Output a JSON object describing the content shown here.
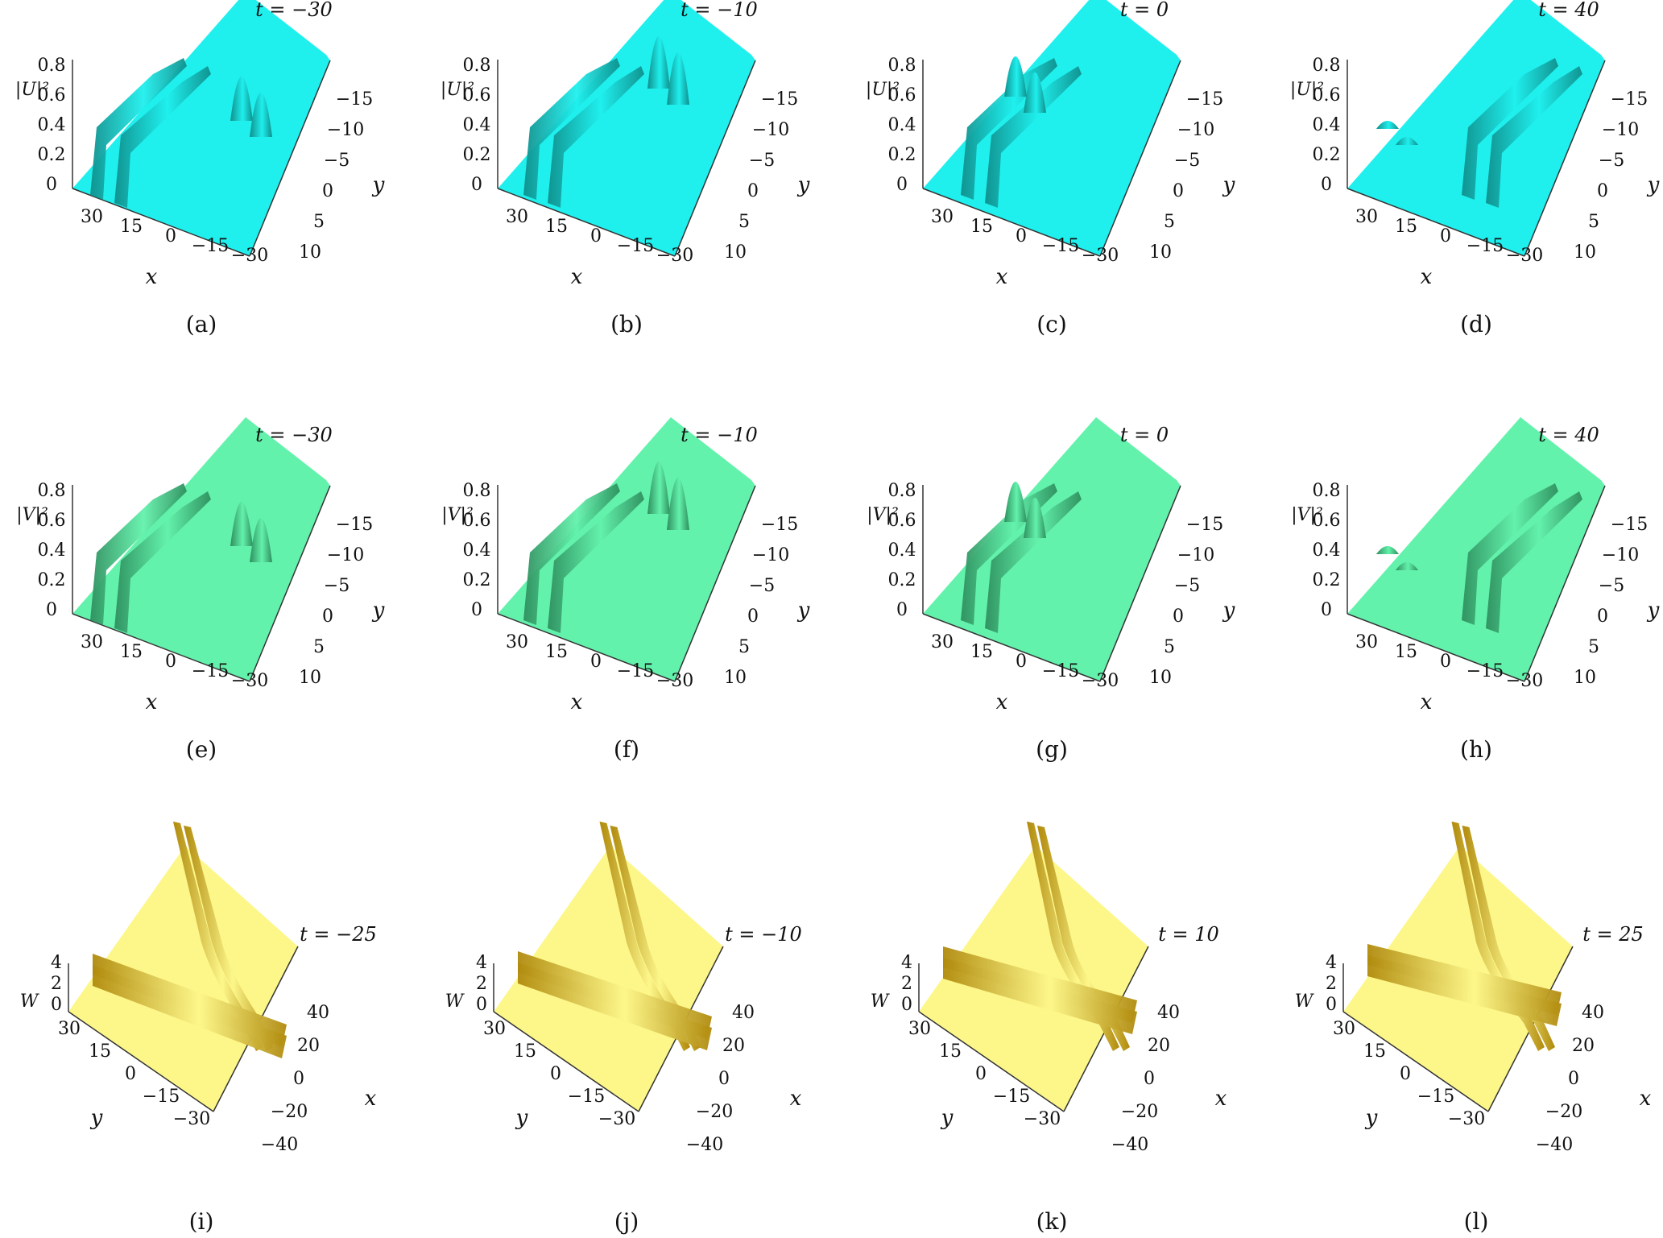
{
  "panels": [
    {
      "id": "a",
      "caption": "(a)",
      "t_label": "t = −30",
      "z_label": "|U|²",
      "field": "U",
      "row": 0,
      "col": 0,
      "color": "#1ff0ee",
      "dark": "#0f8f8c",
      "features": "two line solitons at left, two lumps at right"
    },
    {
      "id": "b",
      "caption": "(b)",
      "t_label": "t = −10",
      "z_label": "|U|²",
      "field": "U",
      "row": 0,
      "col": 1,
      "color": "#1ff0ee",
      "dark": "#0f8f8c",
      "features": "lumps approaching line solitons"
    },
    {
      "id": "c",
      "caption": "(c)",
      "t_label": "t = 0",
      "z_label": "|U|²",
      "field": "U",
      "row": 0,
      "col": 2,
      "color": "#1ff0ee",
      "dark": "#0f8f8c",
      "features": "lumps merged into line solitons"
    },
    {
      "id": "d",
      "caption": "(d)",
      "t_label": "t = 40",
      "z_label": "|U|²",
      "field": "U",
      "row": 0,
      "col": 3,
      "color": "#1ff0ee",
      "dark": "#0f8f8c",
      "features": "lumps separated again on left"
    },
    {
      "id": "e",
      "caption": "(e)",
      "t_label": "t = −30",
      "z_label": "|V|²",
      "field": "V",
      "row": 1,
      "col": 0,
      "color": "#63f2ac",
      "dark": "#2e8f5e",
      "features": "two line solitons at left, two lumps at right"
    },
    {
      "id": "f",
      "caption": "(f)",
      "t_label": "t = −10",
      "z_label": "|V|²",
      "field": "V",
      "row": 1,
      "col": 1,
      "color": "#63f2ac",
      "dark": "#2e8f5e",
      "features": "lumps approaching line solitons"
    },
    {
      "id": "g",
      "caption": "(g)",
      "t_label": "t = 0",
      "z_label": "|V|²",
      "field": "V",
      "row": 1,
      "col": 2,
      "color": "#63f2ac",
      "dark": "#2e8f5e",
      "features": "lumps merged into line solitons"
    },
    {
      "id": "h",
      "caption": "(h)",
      "t_label": "t = 40",
      "z_label": "|V|²",
      "field": "V",
      "row": 1,
      "col": 3,
      "color": "#63f2ac",
      "dark": "#2e8f5e",
      "features": "lumps separated again on left"
    },
    {
      "id": "i",
      "caption": "(i)",
      "t_label": "t = −25",
      "z_label": "W",
      "field": "W",
      "row": 2,
      "col": 0,
      "color": "#fdf78a",
      "dark": "#b08a0c",
      "features": "crossing pairs of line solitons"
    },
    {
      "id": "j",
      "caption": "(j)",
      "t_label": "t = −10",
      "z_label": "W",
      "field": "W",
      "row": 2,
      "col": 1,
      "color": "#fdf78a",
      "dark": "#b08a0c",
      "features": "crossing pairs of line solitons"
    },
    {
      "id": "k",
      "caption": "(k)",
      "t_label": "t = 10",
      "z_label": "W",
      "field": "W",
      "row": 2,
      "col": 2,
      "color": "#fdf78a",
      "dark": "#b08a0c",
      "features": "crossing pairs of line solitons"
    },
    {
      "id": "l",
      "caption": "(l)",
      "t_label": "t = 25",
      "z_label": "W",
      "field": "W",
      "row": 2,
      "col": 3,
      "color": "#fdf78a",
      "dark": "#b08a0c",
      "features": "crossing pairs of line solitons"
    }
  ],
  "uv_axes": {
    "z_ticks": [
      "0.8",
      "0.6",
      "0.4",
      "0.2",
      "0"
    ],
    "x_ticks": [
      "30",
      "15",
      "0",
      "−15",
      "−30"
    ],
    "y_ticks": [
      "−15",
      "−10",
      "−5",
      "0",
      "5",
      "10"
    ],
    "x_label": "x",
    "y_label": "y"
  },
  "w_axes": {
    "z_ticks": [
      "4",
      "2",
      "0"
    ],
    "y_ticks": [
      "30",
      "15",
      "0",
      "−15",
      "−30"
    ],
    "x_ticks": [
      "40",
      "20",
      "0",
      "−20",
      "−40"
    ],
    "x_label": "x",
    "y_label": "y"
  }
}
